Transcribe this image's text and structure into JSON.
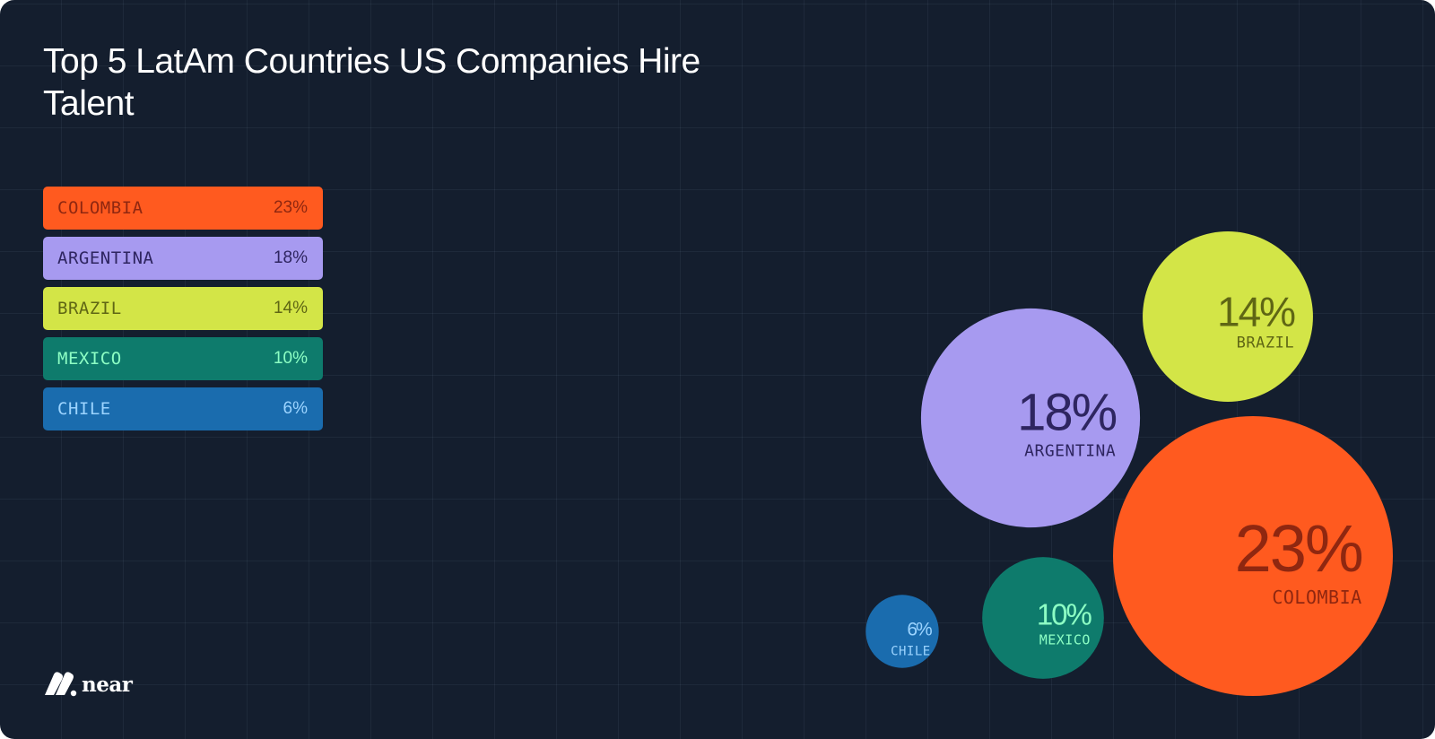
{
  "title": "Top 5 LatAm Countries US Companies Hire Talent",
  "brand": {
    "name": "near",
    "logo_icon": "near-logo-icon"
  },
  "chart_data": {
    "type": "bubble",
    "title": "Top 5 LatAm Countries US Companies Hire Talent",
    "unit": "%",
    "categories": [
      "COLOMBIA",
      "ARGENTINA",
      "BRAZIL",
      "MEXICO",
      "CHILE"
    ],
    "values": [
      23,
      18,
      14,
      10,
      6
    ],
    "value_labels": [
      "23%",
      "18%",
      "14%",
      "10%",
      "6%"
    ],
    "colors": [
      "#ff5a1f",
      "#a79af0",
      "#d3e547",
      "#0e7b6c",
      "#1a6cae"
    ],
    "text_colors": [
      "#8f2710",
      "#2e2560",
      "#5f6614",
      "#8dffc4",
      "#9cd4ff"
    ],
    "legend": "top-left",
    "grid": true
  }
}
